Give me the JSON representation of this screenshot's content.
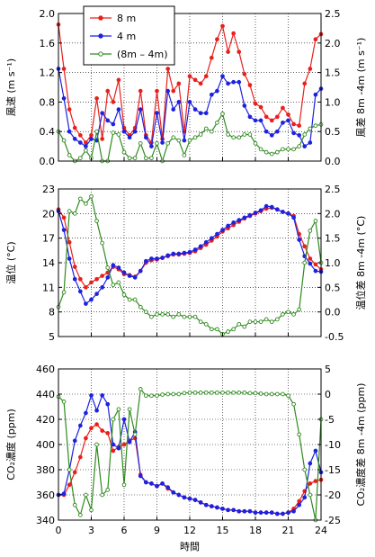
{
  "figure": {
    "xlabel": "時間",
    "x_ticks": [
      0,
      3,
      6,
      9,
      12,
      15,
      18,
      21,
      24
    ],
    "legend": {
      "placement": "top-left",
      "entries": [
        "8 m",
        "4 m",
        "(8m – 4m)"
      ]
    }
  },
  "chart_data": [
    {
      "type": "line",
      "left_axis": {
        "label": "風速 (m s⁻¹)",
        "ylim": [
          0.0,
          2.0
        ],
        "ticks": [
          "0.0",
          "0.4",
          "0.8",
          "1.2",
          "1.6",
          "2.0"
        ]
      },
      "right_axis": {
        "label": "風差 8m -4m (m s⁻¹)",
        "ylim": [
          0.0,
          2.5
        ],
        "ticks": [
          "0.0",
          "0.5",
          "1.0",
          "1.5",
          "2.0",
          "2.5"
        ]
      },
      "grid": true,
      "x": [
        0,
        0.5,
        1,
        1.5,
        2,
        2.5,
        3,
        3.5,
        4,
        4.5,
        5,
        5.5,
        6,
        6.5,
        7,
        7.5,
        8,
        8.5,
        9,
        9.5,
        10,
        10.5,
        11,
        11.5,
        12,
        12.5,
        13,
        13.5,
        14,
        14.5,
        15,
        15.5,
        16,
        16.5,
        17,
        17.5,
        18,
        18.5,
        19,
        19.5,
        20,
        20.5,
        21,
        21.5,
        22,
        22.5,
        23,
        23.5,
        24
      ],
      "series": [
        {
          "name": "8 m",
          "color": "#e8201c",
          "axis": "left",
          "values": [
            1.85,
            1.25,
            0.7,
            0.45,
            0.35,
            0.25,
            0.35,
            0.85,
            0.3,
            0.95,
            0.8,
            1.1,
            0.45,
            0.35,
            0.45,
            0.95,
            0.35,
            0.25,
            0.95,
            0.3,
            1.25,
            0.95,
            1.05,
            0.4,
            1.15,
            1.1,
            1.05,
            1.15,
            1.4,
            1.65,
            1.83,
            1.48,
            1.73,
            1.48,
            1.18,
            1.03,
            0.78,
            0.73,
            0.6,
            0.55,
            0.6,
            0.72,
            0.63,
            0.5,
            0.48,
            1.05,
            1.25,
            1.65,
            1.72
          ]
        },
        {
          "name": "4 m",
          "color": "#1c22e0",
          "axis": "left",
          "values": [
            1.25,
            0.85,
            0.4,
            0.3,
            0.25,
            0.2,
            0.3,
            0.28,
            0.65,
            0.55,
            0.5,
            0.7,
            0.4,
            0.32,
            0.4,
            0.7,
            0.32,
            0.2,
            0.65,
            0.25,
            0.95,
            0.7,
            0.8,
            0.28,
            0.8,
            0.7,
            0.65,
            0.65,
            0.9,
            0.95,
            1.15,
            1.05,
            1.07,
            1.07,
            0.75,
            0.6,
            0.55,
            0.55,
            0.4,
            0.35,
            0.4,
            0.52,
            0.55,
            0.38,
            0.35,
            0.2,
            0.25,
            0.9,
            0.98
          ]
        },
        {
          "name": "(8m – 4m)",
          "color": "#2f8a1e",
          "axis": "right",
          "values": [
            0.5,
            0.35,
            0.1,
            0.0,
            0.05,
            0.18,
            0.05,
            0.5,
            0.0,
            0.0,
            0.48,
            0.45,
            0.15,
            0.05,
            0.05,
            0.3,
            0.05,
            0.05,
            0.3,
            0.0,
            0.3,
            0.4,
            0.35,
            0.1,
            0.35,
            0.4,
            0.45,
            0.55,
            0.5,
            0.65,
            0.8,
            0.45,
            0.4,
            0.4,
            0.45,
            0.45,
            0.3,
            0.2,
            0.15,
            0.12,
            0.15,
            0.2,
            0.2,
            0.2,
            0.25,
            0.45,
            0.55,
            0.6,
            0.62
          ]
        }
      ]
    },
    {
      "type": "line",
      "left_axis": {
        "label": "温位 (°C)",
        "ylim": [
          5,
          23
        ],
        "ticks": [
          "5",
          "8",
          "11",
          "14",
          "17",
          "20",
          "23"
        ]
      },
      "right_axis": {
        "label": "温位差 8m -4m (°C)",
        "ylim": [
          -0.5,
          2.5
        ],
        "ticks": [
          "-0.5",
          "0.0",
          "0.5",
          "1.0",
          "1.5",
          "2.0",
          "2.5"
        ]
      },
      "grid": true,
      "x": [
        0,
        0.5,
        1,
        1.5,
        2,
        2.5,
        3,
        3.5,
        4,
        4.5,
        5,
        5.5,
        6,
        6.5,
        7,
        7.5,
        8,
        8.5,
        9,
        9.5,
        10,
        10.5,
        11,
        11.5,
        12,
        12.5,
        13,
        13.5,
        14,
        14.5,
        15,
        15.5,
        16,
        16.5,
        17,
        17.5,
        18,
        18.5,
        19,
        19.5,
        20,
        20.5,
        21,
        21.5,
        22,
        22.5,
        23,
        23.5,
        24
      ],
      "series": [
        {
          "name": "8 m",
          "color": "#e8201c",
          "axis": "left",
          "values": [
            20.5,
            19.5,
            16.5,
            13.5,
            12.0,
            11.0,
            11.6,
            12.0,
            12.4,
            12.8,
            13.5,
            13.2,
            12.6,
            12.5,
            12.3,
            13.0,
            14.0,
            14.3,
            14.4,
            14.6,
            14.8,
            15.0,
            15.0,
            15.1,
            15.2,
            15.4,
            15.8,
            16.2,
            16.7,
            17.2,
            17.8,
            18.2,
            18.6,
            19.0,
            19.4,
            19.7,
            20.0,
            20.3,
            20.6,
            20.7,
            20.5,
            20.2,
            20.0,
            19.7,
            17.5,
            16.0,
            14.5,
            13.8,
            13.2
          ]
        },
        {
          "name": "4 m",
          "color": "#1c22e0",
          "axis": "left",
          "values": [
            20.3,
            18.0,
            14.5,
            12.0,
            10.5,
            9.0,
            9.5,
            10.2,
            11.0,
            12.2,
            13.7,
            13.4,
            12.8,
            12.4,
            12.2,
            13.0,
            14.2,
            14.5,
            14.5,
            14.6,
            14.9,
            15.1,
            15.1,
            15.2,
            15.3,
            15.6,
            16.0,
            16.5,
            17.0,
            17.5,
            18.0,
            18.5,
            18.9,
            19.2,
            19.5,
            19.8,
            20.1,
            20.4,
            20.9,
            20.8,
            20.5,
            20.2,
            20.0,
            19.5,
            16.8,
            14.8,
            13.9,
            13.0,
            12.9
          ]
        },
        {
          "name": "(8m – 4m)",
          "color": "#2f8a1e",
          "axis": "right",
          "values": [
            0.1,
            0.4,
            2.05,
            2.0,
            2.3,
            2.2,
            2.35,
            1.85,
            1.4,
            0.9,
            0.55,
            0.6,
            0.35,
            0.25,
            0.25,
            0.1,
            0.0,
            -0.1,
            -0.05,
            -0.05,
            -0.05,
            -0.1,
            -0.05,
            -0.1,
            -0.1,
            -0.1,
            -0.2,
            -0.25,
            -0.35,
            -0.35,
            -0.45,
            -0.4,
            -0.35,
            -0.25,
            -0.3,
            -0.2,
            -0.2,
            -0.2,
            -0.15,
            -0.2,
            -0.15,
            -0.05,
            0.0,
            -0.05,
            0.05,
            1.0,
            1.65,
            1.85,
            1.0
          ]
        }
      ]
    },
    {
      "type": "line",
      "left_axis": {
        "label": "CO₂濃度 (ppm)",
        "ylim": [
          340,
          460
        ],
        "ticks": [
          "340",
          "360",
          "380",
          "400",
          "420",
          "440",
          "460"
        ]
      },
      "right_axis": {
        "label": "CO₂濃度差 8m -4m (ppm)",
        "ylim": [
          -25,
          5
        ],
        "ticks": [
          "-25",
          "-20",
          "-15",
          "-10",
          "-5",
          "0",
          "5"
        ]
      },
      "grid": true,
      "x": [
        0,
        0.5,
        1,
        1.5,
        2,
        2.5,
        3,
        3.5,
        4,
        4.5,
        5,
        5.5,
        6,
        6.5,
        7,
        7.5,
        8,
        8.5,
        9,
        9.5,
        10,
        10.5,
        11,
        11.5,
        12,
        12.5,
        13,
        13.5,
        14,
        14.5,
        15,
        15.5,
        16,
        16.5,
        17,
        17.5,
        18,
        18.5,
        19,
        19.5,
        20,
        20.5,
        21,
        21.5,
        22,
        22.5,
        23,
        23.5,
        24
      ],
      "series": [
        {
          "name": "8 m",
          "color": "#e8201c",
          "axis": "left",
          "values": [
            360,
            360,
            368,
            378,
            390,
            405,
            413,
            416,
            411,
            409,
            395,
            398,
            400,
            403,
            405,
            376,
            370,
            369,
            367,
            369,
            365,
            362,
            360,
            358,
            357,
            356,
            354,
            352,
            351,
            350,
            349,
            348,
            348,
            347,
            347,
            347,
            346,
            346,
            346,
            346,
            345,
            345,
            346,
            349,
            355,
            363,
            369,
            371,
            372
          ]
        },
        {
          "name": "4 m",
          "color": "#1c22e0",
          "axis": "left",
          "values": [
            360,
            361,
            380,
            403,
            415,
            425,
            439,
            427,
            439,
            432,
            400,
            397,
            420,
            402,
            410,
            375,
            370,
            369,
            367,
            369,
            366,
            362,
            360,
            358,
            357,
            356,
            354,
            352,
            351,
            350,
            349,
            348,
            348,
            347,
            347,
            347,
            346,
            346,
            346,
            346,
            345,
            345,
            346,
            347,
            352,
            358,
            385,
            395,
            378
          ]
        },
        {
          "name": "(8m – 4m)",
          "color": "#2f8a1e",
          "axis": "right",
          "values": [
            -0.5,
            -1.5,
            -15,
            -22,
            -24,
            -20,
            -23,
            -10,
            -20,
            -19,
            -5,
            -3,
            -18,
            -3,
            -8,
            1,
            -0.3,
            -0.3,
            -0.3,
            -0.1,
            0,
            0,
            0,
            0.2,
            0.3,
            0.3,
            0.3,
            0.3,
            0.3,
            0.3,
            0.3,
            0.3,
            0.3,
            0.3,
            0.3,
            0.2,
            0.2,
            0.1,
            0,
            0,
            0,
            0,
            -0.3,
            -2,
            -8,
            -15,
            -20,
            -25,
            -5
          ]
        }
      ]
    }
  ]
}
